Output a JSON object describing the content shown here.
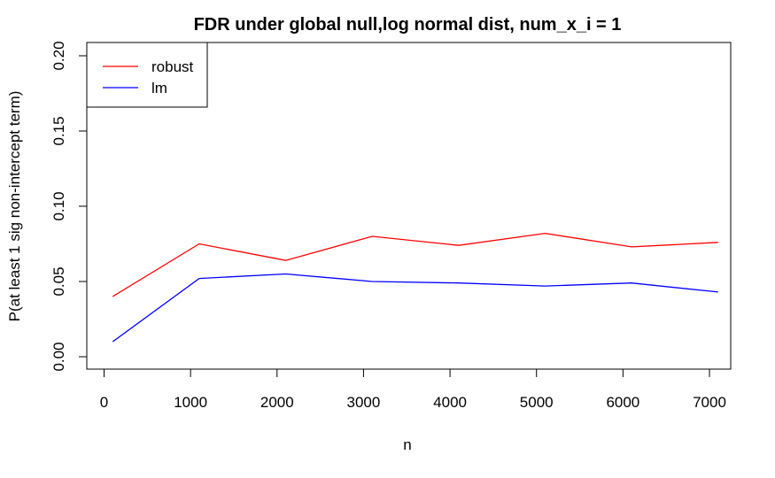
{
  "chart_data": {
    "type": "line",
    "title": "FDR under global null,log normal dist, num_x_i = 1",
    "xlabel": "n",
    "ylabel": "P(at least 1 sig non-intercept term)",
    "xlim": [
      0,
      7100
    ],
    "ylim": [
      0,
      0.2
    ],
    "x_ticks": [
      "0",
      "1000",
      "2000",
      "3000",
      "4000",
      "5000",
      "6000",
      "7000"
    ],
    "y_ticks": [
      "0.00",
      "0.05",
      "0.10",
      "0.15",
      "0.20"
    ],
    "x": [
      100,
      1100,
      2100,
      3100,
      4100,
      5100,
      6100,
      7100
    ],
    "series": [
      {
        "name": "robust",
        "color": "#ff0000",
        "values": [
          0.04,
          0.075,
          0.064,
          0.08,
          0.074,
          0.082,
          0.073,
          0.076
        ]
      },
      {
        "name": "lm",
        "color": "#0000ff",
        "values": [
          0.01,
          0.052,
          0.055,
          0.05,
          0.049,
          0.047,
          0.049,
          0.043
        ]
      }
    ],
    "legend_position": "top-left",
    "grid": false
  }
}
